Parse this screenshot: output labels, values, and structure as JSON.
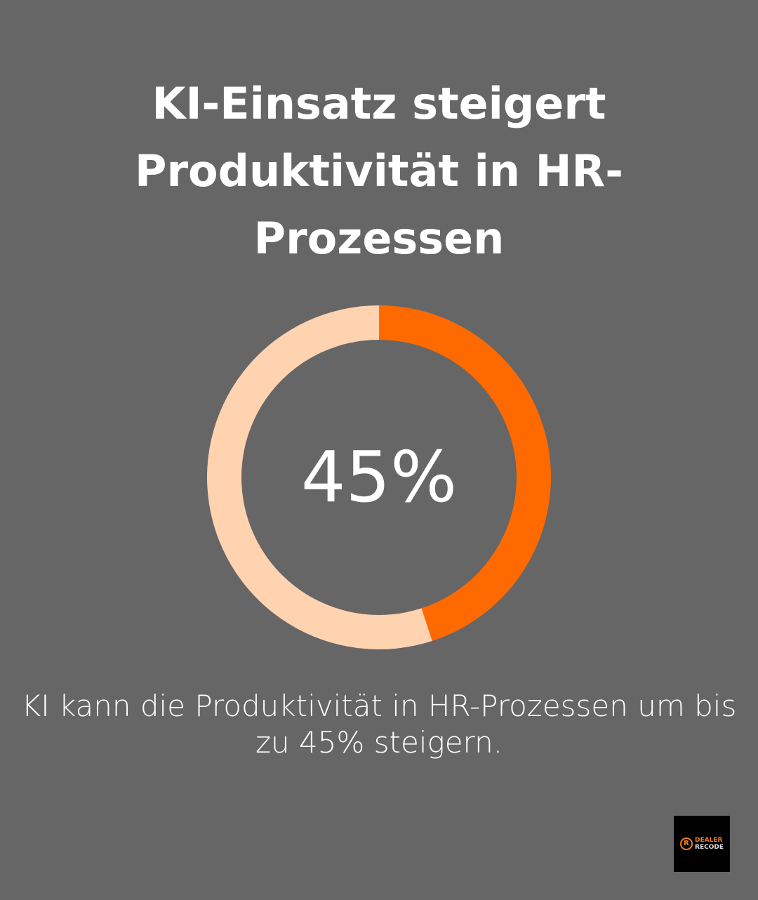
{
  "title": "KI-Einsatz steigert Produktivität in HR-Prozessen",
  "chart_data": {
    "type": "pie",
    "variant": "donut",
    "values": [
      45,
      55
    ],
    "colors": [
      "#ff6a00",
      "#ffd2b0"
    ],
    "center_label": "45%"
  },
  "caption": "KI kann die Produktivität in HR-Prozessen um bis zu 45% steigern.",
  "logo": {
    "line1": "DEALER",
    "line2": "RECODE",
    "colors": {
      "accent": "#f07f1a",
      "background": "#000000"
    }
  },
  "colors": {
    "background": "#666666",
    "text": "#ffffff"
  }
}
